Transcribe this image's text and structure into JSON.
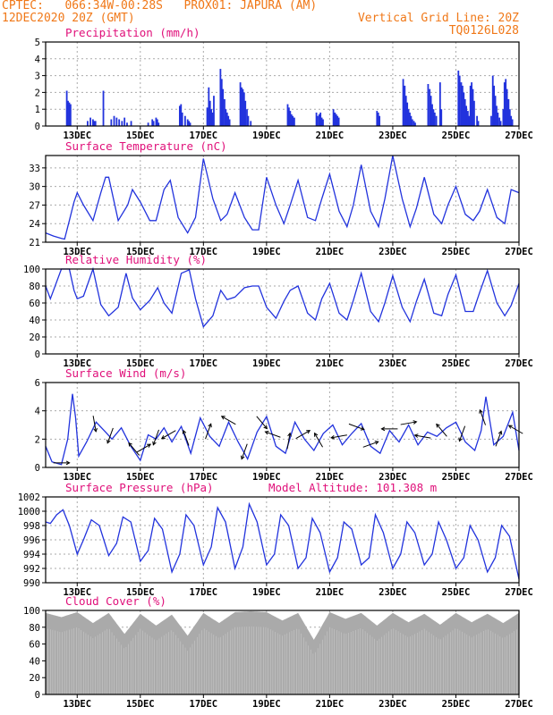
{
  "header": {
    "line1": "CPTEC:   066:34W-00:28S   PROX01: JAPURA (AM)",
    "line2": "12DEC2020 20Z (GMT)",
    "grid_note": "Vertical Grid Line: 20Z",
    "code": "TQ0126L028"
  },
  "colors": {
    "header": "#f07818",
    "title": "#e0107a",
    "line": "#2233dd",
    "cloud": "#aaaaaa",
    "grid": "#aaaaaa"
  },
  "chart_data": [
    {
      "id": "precip",
      "type": "bar",
      "title": "Precipitation (mm/h)",
      "ylim": [
        0,
        5
      ],
      "yticks": [
        0,
        1,
        2,
        3,
        4,
        5
      ],
      "xlim": [
        0,
        15
      ],
      "xticks": [
        1,
        3,
        5,
        7,
        9,
        11,
        13,
        15
      ],
      "xticklabels": [
        "13DEC",
        "15DEC",
        "17DEC",
        "19DEC",
        "21DEC",
        "23DEC",
        "25DEC",
        "27DEC"
      ],
      "x": [
        0.67,
        0.71,
        0.75,
        0.79,
        1.33,
        1.42,
        1.5,
        1.54,
        1.58,
        1.83,
        2.08,
        2.17,
        2.25,
        2.33,
        2.42,
        2.5,
        2.58,
        2.71,
        3.25,
        3.38,
        3.42,
        3.5,
        3.54,
        3.58,
        4.25,
        4.29,
        4.33,
        4.42,
        4.5,
        4.54,
        4.58,
        5.12,
        5.17,
        5.21,
        5.25,
        5.29,
        5.33,
        5.54,
        5.58,
        5.62,
        5.67,
        5.71,
        5.75,
        5.79,
        5.83,
        6.17,
        6.21,
        6.25,
        6.29,
        6.33,
        6.38,
        6.42,
        6.5,
        7.67,
        7.71,
        7.75,
        7.79,
        7.83,
        7.88,
        8.58,
        8.62,
        8.67,
        8.71,
        8.75,
        8.79,
        9.12,
        9.17,
        9.21,
        9.25,
        9.29,
        10.5,
        10.54,
        10.58,
        11.33,
        11.38,
        11.42,
        11.46,
        11.5,
        11.54,
        11.58,
        11.62,
        11.67,
        11.71,
        12.12,
        12.17,
        12.21,
        12.25,
        12.29,
        12.33,
        12.38,
        12.5,
        12.54,
        13.08,
        13.12,
        13.17,
        13.21,
        13.25,
        13.29,
        13.33,
        13.38,
        13.42,
        13.46,
        13.5,
        13.54,
        13.58,
        13.67,
        13.71,
        14.12,
        14.17,
        14.21,
        14.25,
        14.29,
        14.33,
        14.38,
        14.42,
        14.5,
        14.54,
        14.58,
        14.62,
        14.67,
        14.71,
        14.75,
        14.79
      ],
      "values": [
        2.1,
        1.5,
        1.4,
        1.3,
        0.3,
        0.5,
        0.4,
        0.3,
        0.3,
        2.1,
        0.4,
        0.6,
        0.5,
        0.4,
        0.3,
        0.5,
        0.2,
        0.3,
        0.2,
        0.4,
        0.3,
        0.5,
        0.4,
        0.2,
        1.2,
        1.3,
        0.8,
        0.6,
        0.4,
        0.3,
        0.2,
        1.1,
        2.3,
        1.5,
        1.0,
        0.8,
        1.8,
        3.4,
        2.8,
        2.2,
        1.6,
        1.0,
        0.8,
        0.6,
        0.4,
        2.6,
        2.3,
        2.2,
        2.0,
        1.5,
        1.0,
        0.6,
        0.3,
        1.3,
        1.1,
        0.9,
        0.7,
        0.6,
        0.5,
        0.8,
        0.6,
        0.7,
        0.8,
        0.5,
        0.4,
        1.0,
        0.8,
        0.7,
        0.6,
        0.5,
        0.9,
        0.8,
        0.6,
        2.8,
        2.4,
        1.8,
        1.4,
        1.0,
        0.8,
        0.6,
        0.4,
        0.3,
        0.2,
        2.5,
        2.2,
        1.8,
        1.3,
        1.0,
        0.8,
        0.6,
        2.6,
        1.0,
        3.3,
        3.0,
        2.6,
        2.4,
        2.0,
        1.6,
        1.2,
        0.9,
        0.6,
        2.4,
        2.6,
        2.2,
        1.5,
        0.6,
        0.3,
        0.6,
        3.0,
        2.4,
        1.8,
        1.2,
        0.8,
        0.5,
        0.3,
        1.0,
        2.6,
        2.8,
        2.2,
        1.6,
        1.0,
        0.6,
        0.4
      ]
    },
    {
      "id": "temp",
      "type": "line",
      "title": "Surface Temperature (nC)",
      "ylim": [
        21,
        35
      ],
      "yticks": [
        21,
        24,
        27,
        30,
        33
      ],
      "xlim": [
        0,
        15
      ],
      "xticks": [
        1,
        3,
        5,
        7,
        9,
        11,
        13,
        15
      ],
      "xticklabels": [
        "13DEC",
        "15DEC",
        "17DEC",
        "19DEC",
        "21DEC",
        "23DEC",
        "25DEC",
        "27DEC"
      ],
      "x": [
        0,
        0.25,
        0.5,
        0.6,
        0.75,
        0.9,
        1.0,
        1.2,
        1.5,
        1.75,
        1.9,
        2.0,
        2.3,
        2.6,
        2.75,
        3.0,
        3.3,
        3.5,
        3.75,
        3.95,
        4.2,
        4.5,
        4.75,
        5.0,
        5.3,
        5.55,
        5.75,
        6.0,
        6.3,
        6.55,
        6.75,
        7.0,
        7.3,
        7.55,
        7.75,
        8.0,
        8.3,
        8.55,
        8.75,
        9.0,
        9.3,
        9.55,
        9.75,
        10.0,
        10.3,
        10.55,
        10.75,
        11.0,
        11.3,
        11.55,
        11.75,
        12.0,
        12.3,
        12.55,
        12.75,
        13.0,
        13.3,
        13.55,
        13.75,
        14.0,
        14.3,
        14.55,
        14.75,
        15.0
      ],
      "values": [
        22.5,
        22,
        21.6,
        21.5,
        24.5,
        27.5,
        29,
        27,
        24.5,
        29,
        31.5,
        31.5,
        24.5,
        27,
        29.5,
        27.5,
        24.5,
        24.5,
        29.5,
        31,
        25,
        22.5,
        25,
        34.5,
        28,
        24.5,
        25.5,
        29,
        25,
        23,
        23,
        31.5,
        27,
        24,
        27,
        31,
        25,
        24.5,
        28,
        32,
        26,
        23.5,
        27,
        33.5,
        26,
        23.5,
        28,
        35,
        28,
        23.5,
        26.5,
        31.5,
        25.5,
        24,
        27,
        30,
        25.5,
        24.5,
        26,
        29.5,
        25,
        24,
        29.5,
        29
      ]
    },
    {
      "id": "rh",
      "type": "line",
      "title": "Relative Humidity (%)",
      "ylim": [
        0,
        100
      ],
      "yticks": [
        0,
        20,
        40,
        60,
        80,
        100
      ],
      "xlim": [
        0,
        15
      ],
      "xticks": [
        1,
        3,
        5,
        7,
        9,
        11,
        13,
        15
      ],
      "xticklabels": [
        "13DEC",
        "15DEC",
        "17DEC",
        "19DEC",
        "21DEC",
        "23DEC",
        "25DEC",
        "27DEC"
      ],
      "x": [
        0,
        0.15,
        0.5,
        0.75,
        0.9,
        1.0,
        1.2,
        1.5,
        1.75,
        2.0,
        2.3,
        2.55,
        2.75,
        3.0,
        3.3,
        3.55,
        3.75,
        4.0,
        4.3,
        4.55,
        4.75,
        5.0,
        5.3,
        5.55,
        5.75,
        6.0,
        6.3,
        6.55,
        6.75,
        7.0,
        7.3,
        7.55,
        7.75,
        8.0,
        8.3,
        8.55,
        8.75,
        9.0,
        9.3,
        9.55,
        9.75,
        10.0,
        10.3,
        10.55,
        10.75,
        11.0,
        11.3,
        11.55,
        11.75,
        12.0,
        12.3,
        12.55,
        12.75,
        13.0,
        13.3,
        13.55,
        13.75,
        14.0,
        14.3,
        14.55,
        14.75,
        15.0
      ],
      "values": [
        80,
        65,
        100,
        100,
        75,
        65,
        68,
        100,
        58,
        45,
        55,
        95,
        66,
        52,
        63,
        78,
        60,
        48,
        95,
        99,
        65,
        32,
        45,
        75,
        64,
        67,
        78,
        80,
        80,
        55,
        42,
        62,
        75,
        80,
        48,
        40,
        65,
        83,
        48,
        40,
        63,
        95,
        50,
        38,
        60,
        92,
        55,
        38,
        62,
        88,
        48,
        45,
        70,
        93,
        50,
        50,
        72,
        98,
        60,
        45,
        57,
        83
      ]
    },
    {
      "id": "wind",
      "type": "line",
      "title": "Surface Wind (m/s)",
      "ylim": [
        0,
        6
      ],
      "yticks": [
        0,
        2,
        4,
        6
      ],
      "xlim": [
        0,
        15
      ],
      "xticks": [
        1,
        3,
        5,
        7,
        9,
        11,
        13,
        15
      ],
      "xticklabels": [
        "13DEC",
        "15DEC",
        "17DEC",
        "19DEC",
        "21DEC",
        "23DEC",
        "25DEC",
        "27DEC"
      ],
      "x": [
        0,
        0.2,
        0.5,
        0.7,
        0.85,
        0.95,
        1.05,
        1.3,
        1.6,
        1.9,
        2.1,
        2.4,
        2.7,
        3.0,
        3.25,
        3.5,
        3.75,
        4.0,
        4.3,
        4.6,
        4.9,
        5.2,
        5.5,
        5.8,
        6.1,
        6.4,
        6.7,
        7.0,
        7.3,
        7.6,
        7.9,
        8.2,
        8.5,
        8.8,
        9.1,
        9.4,
        9.7,
        10.0,
        10.3,
        10.6,
        10.9,
        11.2,
        11.5,
        11.8,
        12.1,
        12.4,
        12.7,
        13.0,
        13.3,
        13.6,
        13.8,
        13.95,
        14.2,
        14.5,
        14.8,
        15.0
      ],
      "values": [
        1.5,
        0.4,
        0.2,
        2.0,
        5.2,
        3.5,
        0.8,
        1.8,
        3.2,
        2.5,
        2.0,
        2.8,
        1.5,
        0.5,
        2.3,
        2.0,
        2.8,
        1.8,
        2.9,
        1.0,
        3.5,
        2.2,
        1.5,
        3.2,
        1.8,
        0.6,
        2.5,
        3.6,
        1.5,
        1.0,
        3.2,
        2.0,
        1.2,
        2.4,
        3.0,
        1.6,
        2.4,
        3.1,
        1.5,
        1.0,
        2.6,
        1.8,
        3.0,
        1.6,
        2.5,
        2.2,
        2.8,
        3.2,
        1.8,
        1.2,
        2.6,
        5.0,
        1.6,
        2.2,
        3.9,
        1.2
      ],
      "arrow_x": [
        0.5,
        1.55,
        2.05,
        2.8,
        3.1,
        3.5,
        3.9,
        4.45,
        5.15,
        5.8,
        6.3,
        6.85,
        7.2,
        7.7,
        8.15,
        8.65,
        9.3,
        9.85,
        10.3,
        10.9,
        11.5,
        11.95,
        12.55,
        13.2,
        13.85,
        14.35,
        14.9
      ],
      "arrow_dir": [
        90,
        170,
        200,
        320,
        60,
        200,
        240,
        340,
        20,
        300,
        200,
        140,
        290,
        10,
        60,
        330,
        260,
        110,
        70,
        270,
        80,
        280,
        320,
        200,
        340,
        20,
        300
      ]
    },
    {
      "id": "pressure",
      "type": "line",
      "title": "Surface Pressure (hPa)",
      "annotation": "Model Altitude: 101.308 m",
      "ylim": [
        990,
        1002
      ],
      "yticks": [
        990,
        992,
        994,
        996,
        998,
        1000,
        1002
      ],
      "xlim": [
        0,
        15
      ],
      "xticks": [
        1,
        3,
        5,
        7,
        9,
        11,
        13,
        15
      ],
      "xticklabels": [
        "13DEC",
        "15DEC",
        "17DEC",
        "19DEC",
        "21DEC",
        "23DEC",
        "25DEC",
        "27DEC"
      ],
      "x": [
        0,
        0.15,
        0.35,
        0.55,
        0.75,
        1.0,
        1.2,
        1.45,
        1.7,
        2.0,
        2.25,
        2.45,
        2.7,
        3.0,
        3.25,
        3.45,
        3.7,
        4.0,
        4.25,
        4.45,
        4.7,
        5.0,
        5.25,
        5.45,
        5.7,
        6.0,
        6.25,
        6.45,
        6.7,
        7.0,
        7.25,
        7.45,
        7.7,
        8.0,
        8.25,
        8.45,
        8.7,
        9.0,
        9.25,
        9.45,
        9.7,
        10.0,
        10.25,
        10.45,
        10.7,
        11.0,
        11.25,
        11.45,
        11.7,
        12.0,
        12.25,
        12.45,
        12.7,
        13.0,
        13.25,
        13.45,
        13.7,
        14.0,
        14.25,
        14.45,
        14.7,
        15.0
      ],
      "values": [
        998.5,
        998.3,
        999.5,
        1000.2,
        998.0,
        994.0,
        996.0,
        998.8,
        998.0,
        993.8,
        995.5,
        999.2,
        998.5,
        993.0,
        994.5,
        999.0,
        997.5,
        991.5,
        994.0,
        999.5,
        998.0,
        992.5,
        995.0,
        1000.5,
        998.5,
        992.0,
        995.0,
        1001.0,
        998.5,
        992.5,
        994.0,
        999.5,
        998.0,
        992.0,
        993.5,
        999.0,
        997.0,
        991.5,
        993.5,
        998.5,
        997.5,
        992.5,
        993.5,
        999.5,
        997.0,
        992.0,
        994.0,
        998.5,
        997.0,
        992.5,
        994.0,
        998.5,
        996.0,
        992.0,
        993.5,
        998.0,
        996.0,
        991.5,
        993.5,
        998.0,
        996.5,
        990.5
      ]
    },
    {
      "id": "cloud",
      "type": "bar",
      "title": "Cloud Cover (%)",
      "ylim": [
        0,
        100
      ],
      "yticks": [
        0,
        20,
        40,
        60,
        80,
        100
      ],
      "xlim": [
        0,
        15
      ],
      "xticks": [
        1,
        3,
        5,
        7,
        9,
        11,
        13,
        15
      ],
      "xticklabels": [
        "13DEC",
        "15DEC",
        "17DEC",
        "19DEC",
        "21DEC",
        "23DEC",
        "25DEC",
        "27DEC"
      ],
      "x": [
        0,
        0.5,
        1.0,
        1.5,
        2.0,
        2.5,
        3.0,
        3.5,
        4.0,
        4.5,
        5.0,
        5.5,
        6.0,
        6.5,
        7.0,
        7.5,
        8.0,
        8.5,
        9.0,
        9.5,
        10.0,
        10.5,
        11.0,
        11.5,
        12.0,
        12.5,
        13.0,
        13.5,
        14.0,
        14.5,
        15.0
      ],
      "values": [
        97,
        92,
        98,
        85,
        97,
        72,
        96,
        82,
        95,
        70,
        97,
        85,
        98,
        99,
        98,
        88,
        97,
        65,
        98,
        90,
        97,
        82,
        97,
        86,
        96,
        83,
        97,
        86,
        96,
        85,
        97
      ]
    }
  ]
}
